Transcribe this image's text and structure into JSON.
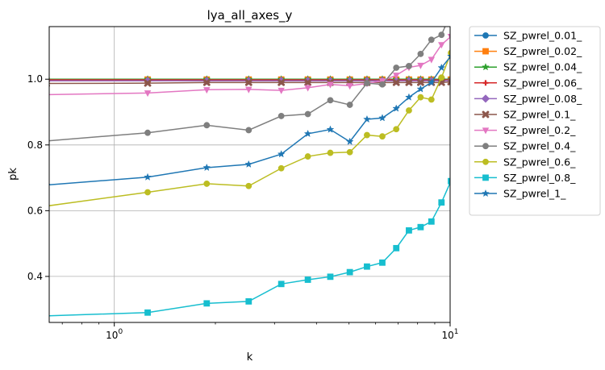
{
  "chart_data": {
    "type": "line",
    "title": "lya_all_axes_y",
    "xlabel": "k",
    "ylabel": "pk",
    "xscale": "log",
    "xlim": [
      0.64,
      10.0
    ],
    "ylim": [
      0.26,
      1.16
    ],
    "grid": true,
    "legend_position": "outside-right",
    "x_ticks": [
      {
        "value": 1,
        "base": "10",
        "exp": "0"
      },
      {
        "value": 10,
        "base": "10",
        "exp": "1"
      }
    ],
    "y_ticks": [
      {
        "value": 0.4,
        "label": "0.4"
      },
      {
        "value": 0.6,
        "label": "0.6"
      },
      {
        "value": 0.8,
        "label": "0.8"
      },
      {
        "value": 1.0,
        "label": "1.0"
      }
    ],
    "x": [
      0.628,
      1.257,
      1.885,
      2.513,
      3.142,
      3.77,
      4.398,
      5.027,
      5.655,
      6.283,
      6.912,
      7.54,
      8.168,
      8.796,
      9.425,
      10.053
    ],
    "series": [
      {
        "name": "SZ_pwrel_0.01_",
        "color": "#1f77b4",
        "marker": "circle",
        "values": [
          0.997,
          0.997,
          0.997,
          0.997,
          0.997,
          0.997,
          0.997,
          0.997,
          0.997,
          0.997,
          0.997,
          0.997,
          0.997,
          0.997,
          0.997,
          0.998
        ]
      },
      {
        "name": "SZ_pwrel_0.02_",
        "color": "#ff7f0e",
        "marker": "square",
        "values": [
          0.999,
          0.999,
          0.999,
          0.999,
          0.999,
          0.999,
          0.999,
          0.999,
          0.999,
          0.999,
          0.999,
          0.999,
          0.999,
          0.999,
          0.999,
          0.999
        ]
      },
      {
        "name": "SZ_pwrel_0.04_",
        "color": "#2ca02c",
        "marker": "star",
        "values": [
          1.0,
          1.0,
          1.0,
          1.0,
          1.0,
          1.0,
          1.0,
          1.0,
          1.0,
          1.0,
          1.0,
          1.0,
          1.0,
          1.0,
          1.0,
          1.0
        ]
      },
      {
        "name": "SZ_pwrel_0.06_",
        "color": "#d62728",
        "marker": "plus",
        "values": [
          0.998,
          0.998,
          0.998,
          0.998,
          0.998,
          0.998,
          0.998,
          0.998,
          0.998,
          0.998,
          0.998,
          0.998,
          0.998,
          0.998,
          0.998,
          0.998
        ]
      },
      {
        "name": "SZ_pwrel_0.08_",
        "color": "#9467bd",
        "marker": "diamond",
        "values": [
          0.995,
          0.995,
          0.995,
          0.995,
          0.995,
          0.995,
          0.995,
          0.995,
          0.995,
          0.995,
          0.995,
          0.995,
          0.995,
          0.995,
          0.995,
          0.996
        ]
      },
      {
        "name": "SZ_pwrel_0.1_",
        "color": "#8c564b",
        "marker": "x",
        "values": [
          0.987,
          0.988,
          0.99,
          0.99,
          0.99,
          0.99,
          0.99,
          0.99,
          0.99,
          0.99,
          0.99,
          0.99,
          0.99,
          0.99,
          0.99,
          0.992
        ]
      },
      {
        "name": "SZ_pwrel_0.2_",
        "color": "#e377c2",
        "marker": "triangle",
        "values": [
          0.953,
          0.958,
          0.968,
          0.969,
          0.966,
          0.974,
          0.984,
          0.98,
          0.987,
          0.995,
          1.012,
          1.036,
          1.042,
          1.06,
          1.105,
          1.13
        ]
      },
      {
        "name": "SZ_pwrel_0.4_",
        "color": "#7f7f7f",
        "marker": "circle",
        "values": [
          0.812,
          0.837,
          0.86,
          0.845,
          0.888,
          0.894,
          0.936,
          0.922,
          0.988,
          0.984,
          1.035,
          1.04,
          1.077,
          1.12,
          1.135,
          1.2
        ]
      },
      {
        "name": "SZ_pwrel_0.6_",
        "color": "#bcbd22",
        "marker": "circle",
        "values": [
          0.614,
          0.656,
          0.682,
          0.675,
          0.729,
          0.765,
          0.776,
          0.778,
          0.83,
          0.826,
          0.848,
          0.905,
          0.945,
          0.938,
          1.005,
          1.08
        ]
      },
      {
        "name": "SZ_pwrel_0.8_",
        "color": "#17becf",
        "marker": "square",
        "values": [
          0.28,
          0.29,
          0.318,
          0.324,
          0.377,
          0.39,
          0.399,
          0.413,
          0.43,
          0.442,
          0.486,
          0.54,
          0.55,
          0.567,
          0.625,
          0.69
        ]
      },
      {
        "name": "SZ_pwrel_1_",
        "color": "#1f77b4",
        "marker": "star",
        "values": [
          0.678,
          0.702,
          0.731,
          0.741,
          0.772,
          0.834,
          0.847,
          0.81,
          0.878,
          0.882,
          0.911,
          0.945,
          0.97,
          0.99,
          1.035,
          1.07
        ]
      }
    ]
  }
}
